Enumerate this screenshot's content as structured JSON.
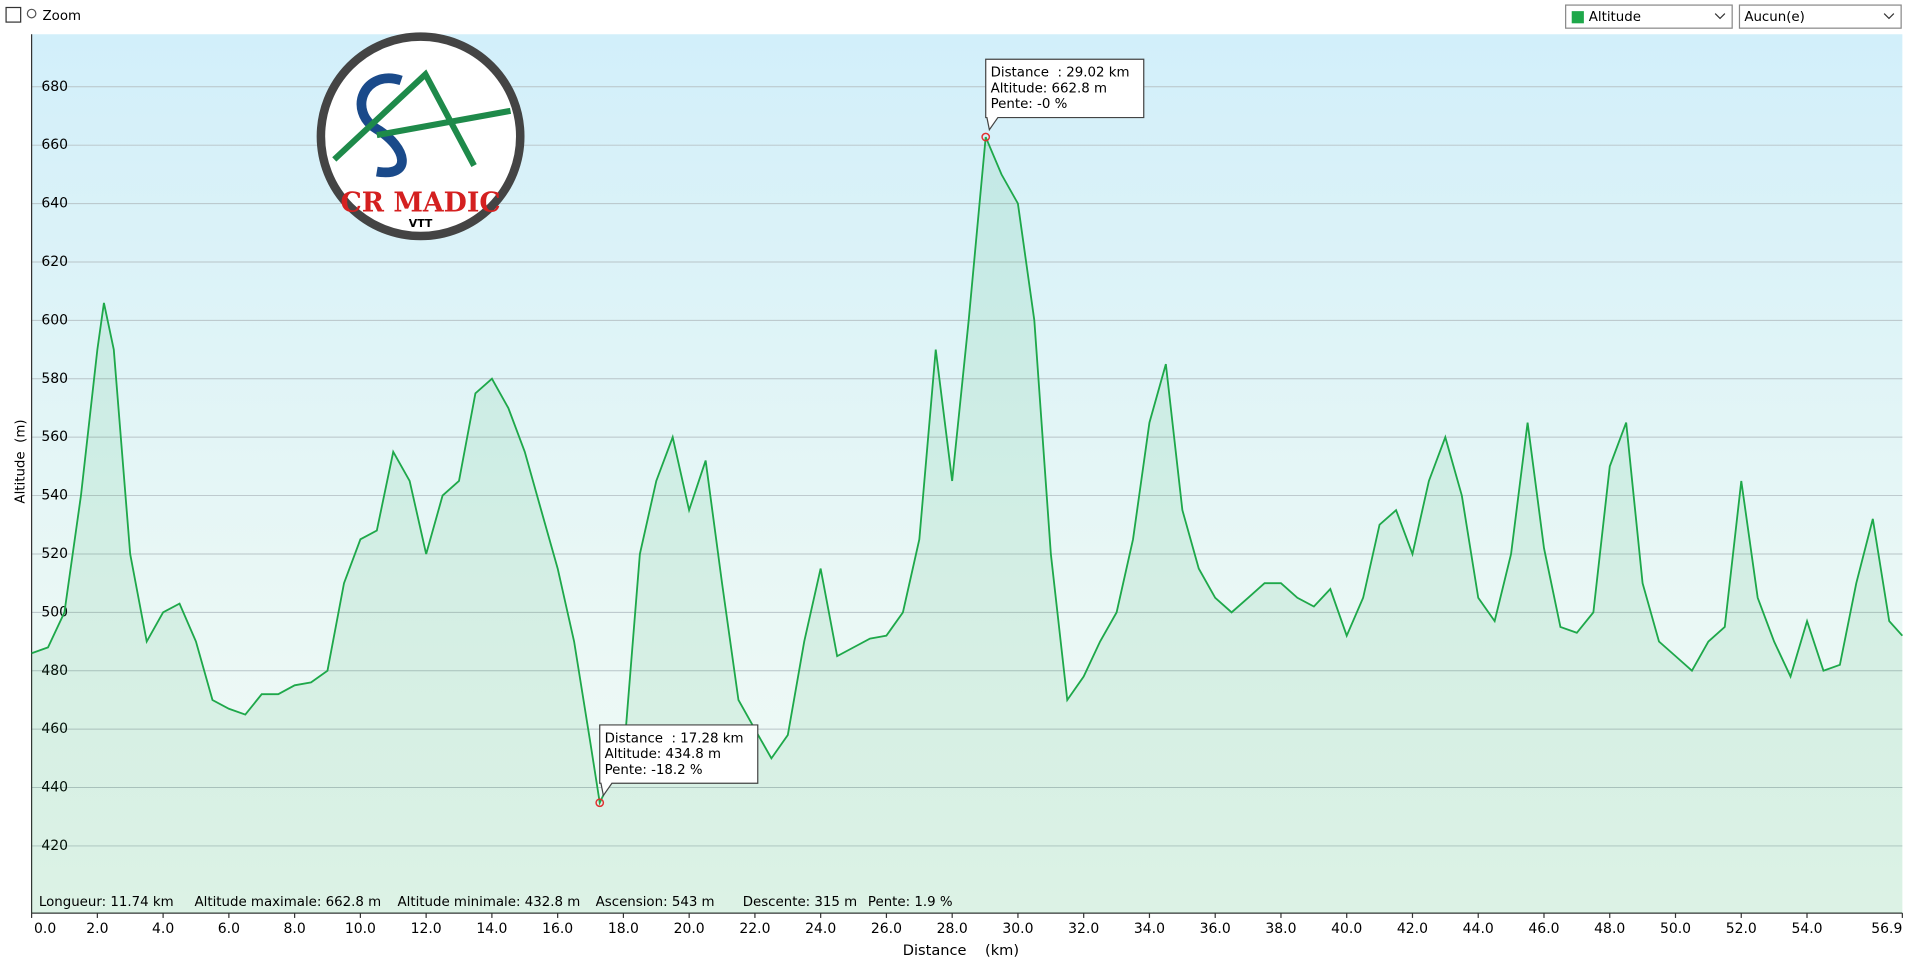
{
  "toolbar": {
    "zoom": "Zoom",
    "series_select": "Altitude",
    "second_select": "Aucun(e)"
  },
  "logo": {
    "name": "CR MADIC",
    "sub": "VTT"
  },
  "chart_data": {
    "type": "area",
    "x_label": "Distance    (km)",
    "y_label": "Altitude  (m)",
    "series": [
      {
        "name": "Altitude",
        "color": "#1ea84a",
        "x": [
          0,
          0.5,
          1.0,
          1.5,
          2.0,
          2.2,
          2.5,
          3.0,
          3.5,
          4.0,
          4.5,
          5.0,
          5.5,
          6.0,
          6.5,
          7.0,
          7.5,
          8.0,
          8.5,
          9.0,
          9.5,
          10.0,
          10.5,
          11.0,
          11.5,
          12.0,
          12.5,
          13.0,
          13.5,
          14.0,
          14.5,
          15.0,
          15.5,
          16.0,
          16.5,
          17.0,
          17.28,
          17.5,
          18.0,
          18.5,
          19.0,
          19.5,
          20.0,
          20.5,
          21.0,
          21.5,
          22.0,
          22.5,
          23.0,
          23.5,
          24.0,
          24.5,
          25.0,
          25.5,
          26.0,
          26.5,
          27.0,
          27.5,
          28.0,
          28.5,
          29.02,
          29.5,
          30.0,
          30.5,
          31.0,
          31.5,
          32.0,
          32.5,
          33.0,
          33.5,
          34.0,
          34.5,
          35.0,
          35.5,
          36.0,
          36.5,
          37.0,
          37.5,
          38.0,
          38.5,
          39.0,
          39.5,
          40.0,
          40.5,
          41.0,
          41.5,
          42.0,
          42.5,
          43.0,
          43.5,
          44.0,
          44.5,
          45.0,
          45.5,
          46.0,
          46.5,
          47.0,
          47.5,
          48.0,
          48.5,
          49.0,
          49.5,
          50.0,
          50.5,
          51.0,
          51.5,
          52.0,
          52.5,
          53.0,
          53.5,
          54.0,
          54.5,
          55.0,
          55.5,
          56.0,
          56.5,
          56.9
        ],
        "values": [
          486,
          488,
          500,
          540,
          590,
          606,
          590,
          520,
          490,
          500,
          503,
          490,
          470,
          467,
          465,
          472,
          472,
          475,
          476,
          480,
          510,
          525,
          528,
          555,
          545,
          520,
          540,
          545,
          575,
          580,
          570,
          555,
          535,
          515,
          490,
          455,
          434.8,
          440,
          450,
          520,
          545,
          560,
          535,
          552,
          510,
          470,
          460,
          450,
          458,
          490,
          515,
          485,
          488,
          491,
          492,
          500,
          525,
          590,
          545,
          600,
          662.8,
          650,
          640,
          600,
          520,
          470,
          478,
          490,
          500,
          525,
          565,
          585,
          535,
          515,
          505,
          500,
          505,
          510,
          510,
          505,
          502,
          508,
          492,
          505,
          530,
          535,
          520,
          545,
          560,
          540,
          505,
          497,
          520,
          565,
          522,
          495,
          493,
          500,
          550,
          565,
          510,
          490,
          485,
          480,
          490,
          495,
          545,
          505,
          490,
          478,
          497,
          480,
          482,
          510,
          532,
          497,
          492
        ]
      }
    ],
    "xlim": [
      0,
      56.9
    ],
    "ylim": [
      397,
      698
    ],
    "yticks": [
      420,
      440,
      460,
      480,
      500,
      520,
      540,
      560,
      580,
      600,
      620,
      640,
      660,
      680
    ],
    "xticks": [
      {
        "value": 0,
        "label": "0.0"
      },
      {
        "value": 2,
        "label": "2.0"
      },
      {
        "value": 4,
        "label": "4.0"
      },
      {
        "value": 6,
        "label": "6.0"
      },
      {
        "value": 8,
        "label": "8.0"
      },
      {
        "value": 10,
        "label": "10.0"
      },
      {
        "value": 12,
        "label": "12.0"
      },
      {
        "value": 14,
        "label": "14.0"
      },
      {
        "value": 16,
        "label": "16.0"
      },
      {
        "value": 18,
        "label": "18.0"
      },
      {
        "value": 20,
        "label": "20.0"
      },
      {
        "value": 22,
        "label": "22.0"
      },
      {
        "value": 24,
        "label": "24.0"
      },
      {
        "value": 26,
        "label": "26.0"
      },
      {
        "value": 28,
        "label": "28.0"
      },
      {
        "value": 30,
        "label": "30.0"
      },
      {
        "value": 32,
        "label": "32.0"
      },
      {
        "value": 34,
        "label": "34.0"
      },
      {
        "value": 36,
        "label": "36.0"
      },
      {
        "value": 38,
        "label": "38.0"
      },
      {
        "value": 40,
        "label": "40.0"
      },
      {
        "value": 42,
        "label": "42.0"
      },
      {
        "value": 44,
        "label": "44.0"
      },
      {
        "value": 46,
        "label": "46.0"
      },
      {
        "value": 48,
        "label": "48.0"
      },
      {
        "value": 50,
        "label": "50.0"
      },
      {
        "value": 52,
        "label": "52.0"
      },
      {
        "value": 54,
        "label": "54.0"
      },
      56.9
    ],
    "grid": true,
    "annotations": [
      {
        "x": 29.02,
        "y": 662.8,
        "lines": [
          "Distance  : 29.02 km",
          "Altitude: 662.8 m",
          "Pente: -0 %"
        ]
      },
      {
        "x": 17.28,
        "y": 434.8,
        "lines": [
          "Distance  : 17.28 km",
          "Altitude: 434.8 m",
          "Pente: -18.2 %"
        ]
      }
    ],
    "stats": [
      "Longueur: 11.74 km",
      "Altitude maximale: 662.8 m",
      "Altitude minimale: 432.8 m",
      "Ascension: 543 m",
      "Descente: 315 m",
      "Pente: 1.9 %"
    ]
  }
}
